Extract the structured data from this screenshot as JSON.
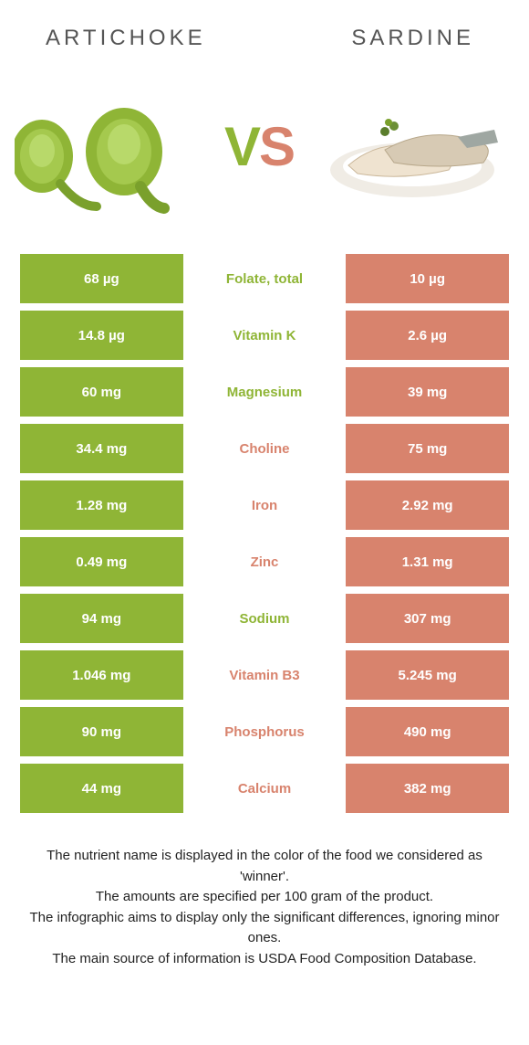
{
  "colors": {
    "left": "#8fb536",
    "right": "#d8836d",
    "vs_v": "#8fb536",
    "vs_s": "#d8836d",
    "title_text": "#555555"
  },
  "left_food": {
    "title": "Artichoke"
  },
  "right_food": {
    "title": "Sardine"
  },
  "vs": {
    "v": "V",
    "s": "S"
  },
  "rows": [
    {
      "left": "68 µg",
      "mid": "Folate, total",
      "right": "10 µg",
      "winner": "left"
    },
    {
      "left": "14.8 µg",
      "mid": "Vitamin K",
      "right": "2.6 µg",
      "winner": "left"
    },
    {
      "left": "60 mg",
      "mid": "Magnesium",
      "right": "39 mg",
      "winner": "left"
    },
    {
      "left": "34.4 mg",
      "mid": "Choline",
      "right": "75 mg",
      "winner": "right"
    },
    {
      "left": "1.28 mg",
      "mid": "Iron",
      "right": "2.92 mg",
      "winner": "right"
    },
    {
      "left": "0.49 mg",
      "mid": "Zinc",
      "right": "1.31 mg",
      "winner": "right"
    },
    {
      "left": "94 mg",
      "mid": "Sodium",
      "right": "307 mg",
      "winner": "left"
    },
    {
      "left": "1.046 mg",
      "mid": "Vitamin B3",
      "right": "5.245 mg",
      "winner": "right"
    },
    {
      "left": "90 mg",
      "mid": "Phosphorus",
      "right": "490 mg",
      "winner": "right"
    },
    {
      "left": "44 mg",
      "mid": "Calcium",
      "right": "382 mg",
      "winner": "right"
    }
  ],
  "footnote": {
    "l1": "The nutrient name is displayed in the color of the food we considered as 'winner'.",
    "l2": "The amounts are specified per 100 gram of the product.",
    "l3": "The infographic aims to display only the significant differences, ignoring minor ones.",
    "l4": "The main source of information is USDA Food Composition Database."
  }
}
